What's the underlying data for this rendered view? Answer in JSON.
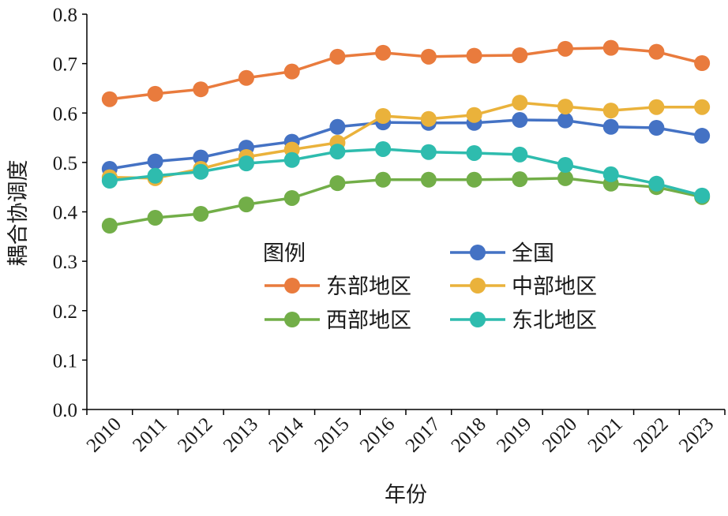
{
  "chart_data": {
    "type": "line",
    "title": "",
    "xlabel": "年份",
    "ylabel": "耦合协调度",
    "ylim": [
      0,
      0.8
    ],
    "yticks": [
      "0.0",
      "0.1",
      "0.2",
      "0.3",
      "0.4",
      "0.5",
      "0.6",
      "0.7",
      "0.8"
    ],
    "categories": [
      "2010",
      "2011",
      "2012",
      "2013",
      "2014",
      "2015",
      "2016",
      "2017",
      "2018",
      "2019",
      "2020",
      "2021",
      "2022",
      "2023"
    ],
    "legend_title": "图例",
    "legend_position": "center",
    "series": [
      {
        "name": "东部地区",
        "color": "#E97B3D",
        "values": [
          0.628,
          0.639,
          0.648,
          0.671,
          0.684,
          0.714,
          0.722,
          0.714,
          0.716,
          0.717,
          0.73,
          0.732,
          0.724,
          0.701
        ]
      },
      {
        "name": "西部地区",
        "color": "#72AE48",
        "values": [
          0.372,
          0.388,
          0.396,
          0.415,
          0.428,
          0.458,
          0.465,
          0.465,
          0.465,
          0.466,
          0.468,
          0.457,
          0.45,
          0.43
        ]
      },
      {
        "name": "全国",
        "color": "#4472C4",
        "values": [
          0.487,
          0.502,
          0.51,
          0.53,
          0.542,
          0.572,
          0.581,
          0.58,
          0.58,
          0.586,
          0.585,
          0.572,
          0.57,
          0.554
        ]
      },
      {
        "name": "中部地区",
        "color": "#EAB23B",
        "values": [
          0.47,
          0.468,
          0.487,
          0.511,
          0.526,
          0.54,
          0.594,
          0.588,
          0.596,
          0.621,
          0.613,
          0.605,
          0.612,
          0.612
        ]
      },
      {
        "name": "东北地区",
        "color": "#2EBCAE",
        "values": [
          0.463,
          0.473,
          0.481,
          0.498,
          0.505,
          0.522,
          0.527,
          0.521,
          0.519,
          0.516,
          0.495,
          0.476,
          0.457,
          0.433
        ]
      }
    ]
  }
}
